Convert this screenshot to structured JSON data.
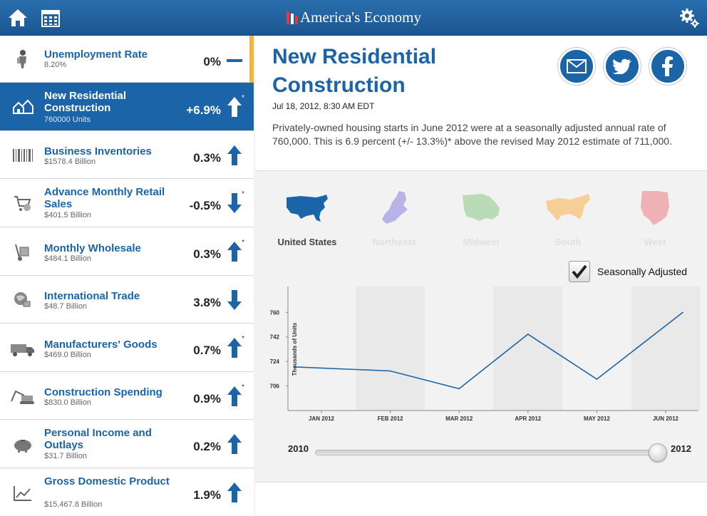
{
  "app": {
    "title": "America's Economy"
  },
  "nav": {
    "home_icon": "home-icon",
    "calendar_icon": "calendar-icon",
    "settings_icon": "gear-icon"
  },
  "colors": {
    "brand_blue": "#1b64a8",
    "active_notch": "#f0b740",
    "up_arrow": "#1b64a8"
  },
  "sidebar": {
    "items": [
      {
        "name": "Unemployment Rate",
        "sub": "8.20%",
        "value": "0%",
        "trend": "flat",
        "asterisk": "",
        "icon": "worker-icon",
        "active": false
      },
      {
        "name": "New Residential Construction",
        "sub": "760000 Units",
        "value": "+6.9%",
        "trend": "up",
        "asterisk": "*",
        "icon": "houses-icon",
        "active": true
      },
      {
        "name": "Business Inventories",
        "sub": "$1578.4 Billion",
        "value": "0.3%",
        "trend": "up",
        "asterisk": "",
        "icon": "barcode-icon",
        "active": false
      },
      {
        "name": "Advance Monthly Retail Sales",
        "sub": "$401.5 Billion",
        "value": "-0.5%",
        "trend": "down",
        "asterisk": "*",
        "icon": "shopping-cart-icon",
        "active": false
      },
      {
        "name": "Monthly Wholesale",
        "sub": "$484.1 Billion",
        "value": "0.3%",
        "trend": "up",
        "asterisk": "*",
        "icon": "hand-truck-icon",
        "active": false
      },
      {
        "name": "International Trade",
        "sub": "$48.7 Billion",
        "value": "3.8%",
        "trend": "down",
        "asterisk": "",
        "icon": "globe-icon",
        "active": false
      },
      {
        "name": "Manufacturers' Goods",
        "sub": "$469.0 Billion",
        "value": "0.7%",
        "trend": "up",
        "asterisk": "*",
        "icon": "truck-icon",
        "active": false
      },
      {
        "name": "Construction Spending",
        "sub": "$830.0 Billion",
        "value": "0.9%",
        "trend": "up",
        "asterisk": "*",
        "icon": "excavator-icon",
        "active": false
      },
      {
        "name": "Personal Income and Outlays",
        "sub": "$31.7 Billion",
        "value": "0.2%",
        "trend": "up",
        "asterisk": "",
        "icon": "piggy-bank-icon",
        "active": false
      },
      {
        "name": "Gross Domestic Product",
        "sub": "$15,467.8 Billion",
        "value": "1.9%",
        "trend": "up",
        "asterisk": "",
        "icon": "line-chart-icon",
        "active": false
      }
    ]
  },
  "detail": {
    "title": "New Residential Construction",
    "date": "Jul 18, 2012, 8:30 AM EDT",
    "description": "Privately-owned housing starts in June 2012 were at a seasonally adjusted annual rate of 760,000. This is 6.9 percent (+/- 13.3%)* above the revised May 2012 estimate of 711,000.",
    "share_icons": [
      "email-icon",
      "twitter-icon",
      "facebook-icon"
    ]
  },
  "regions": {
    "items": [
      {
        "label": "United States",
        "selected": true,
        "color": "#1b64a8"
      },
      {
        "label": "Northeast",
        "selected": false,
        "color": "#b8b3e6"
      },
      {
        "label": "Midwest",
        "selected": false,
        "color": "#b9dcb6"
      },
      {
        "label": "South",
        "selected": false,
        "color": "#f6cf97"
      },
      {
        "label": "West",
        "selected": false,
        "color": "#eeb2b5"
      }
    ]
  },
  "seasonal": {
    "label": "Seasonally Adjusted",
    "checked": true
  },
  "slider": {
    "start_label": "2010",
    "end_label": "2012",
    "position": 1.0
  },
  "chart_data": {
    "type": "line",
    "categories": [
      "JAN 2012",
      "FEB 2012",
      "MAR 2012",
      "APR 2012",
      "MAY 2012",
      "JUN 2012"
    ],
    "x": [
      -0.4,
      1,
      2,
      3,
      4,
      5.25
    ],
    "values": [
      720,
      717,
      704,
      744,
      711,
      760
    ],
    "ylabel": "Thousands of Units",
    "yticks": [
      706,
      724,
      742,
      760
    ],
    "ylim": [
      688,
      779
    ],
    "shaded_bands": true,
    "grid": false
  }
}
